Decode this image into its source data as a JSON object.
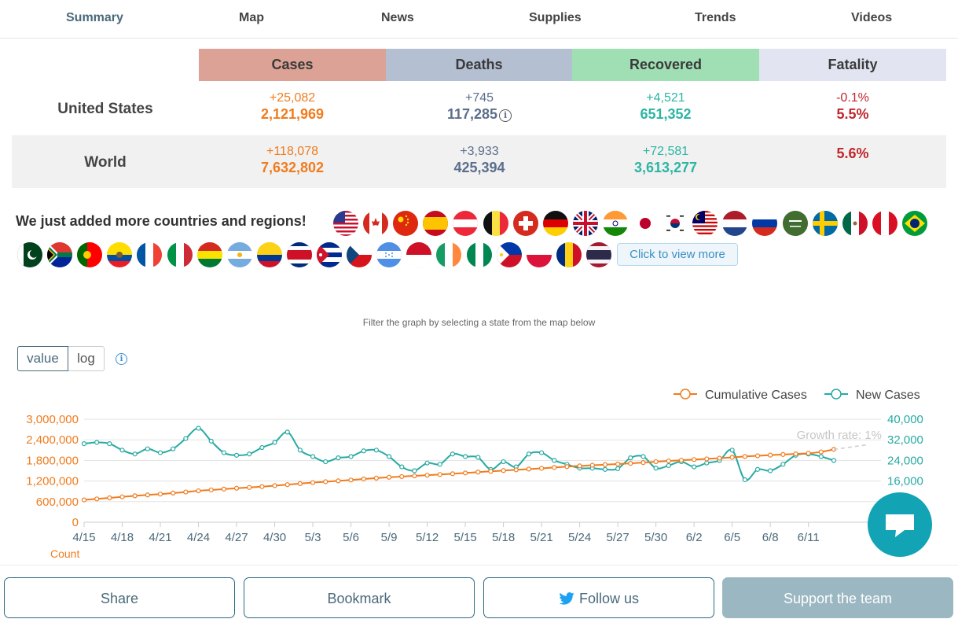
{
  "nav": {
    "tabs": [
      {
        "label": "Summary"
      },
      {
        "label": "Map"
      },
      {
        "label": "News"
      },
      {
        "label": "Supplies"
      },
      {
        "label": "Trends"
      },
      {
        "label": "Videos"
      }
    ]
  },
  "stats": {
    "headers": {
      "cases": "Cases",
      "deaths": "Deaths",
      "recovered": "Recovered",
      "fatality": "Fatality"
    },
    "header_colors": {
      "cases": "#dba295",
      "deaths": "#b4bfd1",
      "recovered": "#9fdfb3",
      "fatality": "#e2e5f1"
    },
    "rows": [
      {
        "label": "United States",
        "cases": {
          "delta": "+25,082",
          "total": "2,121,969"
        },
        "deaths": {
          "delta": "+745",
          "total": "117,285"
        },
        "recovered": {
          "delta": "+4,521",
          "total": "651,352"
        },
        "fatality": {
          "delta": "-0.1%",
          "total": "5.5%"
        }
      },
      {
        "label": "World",
        "cases": {
          "delta": "+118,078",
          "total": "7,632,802"
        },
        "deaths": {
          "delta": "+3,933",
          "total": "425,394"
        },
        "recovered": {
          "delta": "+72,581",
          "total": "3,613,277"
        },
        "fatality": {
          "delta": "",
          "total": "5.6%"
        }
      }
    ],
    "colors": {
      "cases": "#f07c1e",
      "deaths": "#5b6f8c",
      "recovered": "#2cb5a2",
      "fatality": "#c0262d"
    }
  },
  "countries": {
    "heading": "We just added more countries and regions!",
    "view_more": "Click to view more",
    "flags": [
      "us-flag",
      "canada-flag",
      "china-flag",
      "spain-flag",
      "austria-flag",
      "belgium-flag",
      "switzerland-flag",
      "germany-flag",
      "uk-flag",
      "india-flag",
      "japan-flag",
      "south-korea-flag",
      "malaysia-flag",
      "netherlands-flag",
      "russia-flag",
      "saudi-arabia-flag",
      "sweden-flag",
      "mexico-flag",
      "peru-flag",
      "brazil-flag",
      "pakistan-flag",
      "south-africa-flag",
      "portugal-flag",
      "ecuador-flag",
      "france-flag",
      "italy-flag",
      "bolivia-flag",
      "argentina-flag",
      "colombia-flag",
      "costa-rica-flag",
      "cuba-flag",
      "czech-flag",
      "honduras-flag",
      "indonesia-flag",
      "ireland-flag",
      "nigeria-flag",
      "philippines-flag",
      "poland-flag",
      "romania-flag",
      "thailand-flag"
    ]
  },
  "filter_hint": "Filter the graph by selecting a state from the map below",
  "toggle": {
    "value": "value",
    "log": "log"
  },
  "chart_data": {
    "type": "line",
    "x": [
      "4/15",
      "4/16",
      "4/17",
      "4/18",
      "4/19",
      "4/20",
      "4/21",
      "4/22",
      "4/23",
      "4/24",
      "4/25",
      "4/26",
      "4/27",
      "4/28",
      "4/29",
      "4/30",
      "5/1",
      "5/2",
      "5/3",
      "5/4",
      "5/5",
      "5/6",
      "5/7",
      "5/8",
      "5/9",
      "5/10",
      "5/11",
      "5/12",
      "5/13",
      "5/14",
      "5/15",
      "5/16",
      "5/17",
      "5/18",
      "5/19",
      "5/20",
      "5/21",
      "5/22",
      "5/23",
      "5/24",
      "5/25",
      "5/26",
      "5/27",
      "5/28",
      "5/29",
      "5/30",
      "5/31",
      "6/1",
      "6/2",
      "6/3",
      "6/4",
      "6/5",
      "6/6",
      "6/7",
      "6/8",
      "6/9",
      "6/10",
      "6/11",
      "6/12",
      "6/13"
    ],
    "x_tick_labels": [
      "4/15",
      "4/18",
      "4/21",
      "4/24",
      "4/27",
      "4/30",
      "5/3",
      "5/6",
      "5/9",
      "5/12",
      "5/15",
      "5/18",
      "5/21",
      "5/24",
      "5/27",
      "5/30",
      "6/2",
      "6/5",
      "6/8",
      "6/11"
    ],
    "y_left_ticks": [
      "0",
      "600,000",
      "1,200,000",
      "1,800,000",
      "2,400,000",
      "3,000,000"
    ],
    "y_right_ticks": [
      "16,000",
      "24,000",
      "32,000",
      "40,000"
    ],
    "y_left_range": [
      0,
      3000000
    ],
    "y_right_range": [
      0,
      40000
    ],
    "ylabel": "Count",
    "legend_position": "top-right",
    "annotation": "Growth rate: 1%",
    "series": [
      {
        "name": "Cumulative Cases",
        "axis": "left",
        "color": "#f07c1e",
        "values": [
          650000,
          680000,
          710000,
          740000,
          770000,
          795000,
          820000,
          850000,
          880000,
          915000,
          940000,
          965000,
          990000,
          1012000,
          1037000,
          1065000,
          1095000,
          1125000,
          1155000,
          1180000,
          1205000,
          1230000,
          1260000,
          1285000,
          1310000,
          1330000,
          1350000,
          1370000,
          1390000,
          1412000,
          1435000,
          1460000,
          1482000,
          1505000,
          1526000,
          1548000,
          1570000,
          1595000,
          1620000,
          1640000,
          1660000,
          1677000,
          1695000,
          1715000,
          1738000,
          1762000,
          1785000,
          1805000,
          1825000,
          1845000,
          1865000,
          1890000,
          1915000,
          1935000,
          1955000,
          1973000,
          1990000,
          2008000,
          2048000,
          2121969
        ]
      },
      {
        "name": "New Cases",
        "axis": "right",
        "color": "#27aaa3",
        "values": [
          30500,
          31000,
          30500,
          28000,
          26500,
          28500,
          27000,
          28500,
          32500,
          36500,
          31500,
          27000,
          26000,
          26500,
          29000,
          31000,
          35000,
          28000,
          25500,
          23500,
          25000,
          25500,
          27700,
          28000,
          25500,
          21500,
          20000,
          23000,
          22500,
          26500,
          25500,
          25200,
          20500,
          23500,
          21500,
          26500,
          27000,
          24000,
          22500,
          21000,
          21000,
          20500,
          20800,
          25000,
          25500,
          21000,
          22000,
          23500,
          21500,
          23000,
          24000,
          28000,
          16500,
          20500,
          20000,
          22500,
          26000,
          26500,
          25500,
          24000
        ]
      }
    ]
  },
  "buttons": {
    "share": "Share",
    "bookmark": "Bookmark",
    "follow": "Follow us",
    "support": "Support the team"
  }
}
